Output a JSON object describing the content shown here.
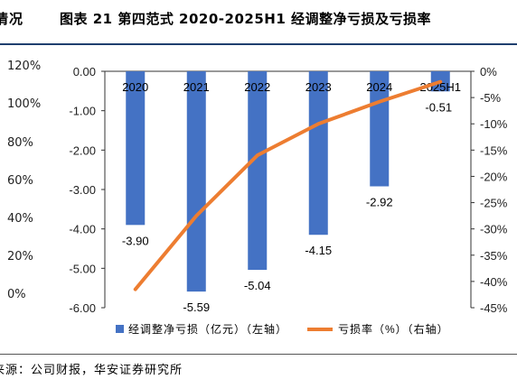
{
  "header": {
    "title_fragment": "情况",
    "title": "图表  21  第四范式 2020-2025H1 经调整净亏损及亏损率"
  },
  "side_axis_ticks": [
    "120%",
    "100%",
    "80%",
    "60%",
    "40%",
    "20%",
    "0%"
  ],
  "chart_data": {
    "type": "bar+line",
    "categories": [
      "2020",
      "2021",
      "2022",
      "2023",
      "2024",
      "2025H1"
    ],
    "series": [
      {
        "name": "经调整净亏损（亿元）（左轴）",
        "type": "bar",
        "axis": "left",
        "color": "#4472C4",
        "values": [
          -3.9,
          -5.59,
          -5.04,
          -4.15,
          -2.92,
          -0.51
        ],
        "labels": [
          "-3.90",
          "-5.59",
          "-5.04",
          "-4.15",
          "-2.92",
          "-0.51"
        ]
      },
      {
        "name": "亏损率（%）（右轴）",
        "type": "line",
        "axis": "right",
        "color": "#ED7D31",
        "values": [
          -41.5,
          -27.5,
          -16.0,
          -10.0,
          -5.8,
          -2.0
        ]
      }
    ],
    "left_axis": {
      "ylim": [
        -6.0,
        0.0
      ],
      "ticks": [
        "0.00",
        "-1.00",
        "-2.00",
        "-3.00",
        "-4.00",
        "-5.00",
        "-6.00"
      ]
    },
    "right_axis": {
      "ylim": [
        -45,
        0
      ],
      "ticks": [
        "0%",
        "-5%",
        "-10%",
        "-15%",
        "-20%",
        "-25%",
        "-30%",
        "-35%",
        "-40%",
        "-45%"
      ]
    },
    "grid": false,
    "legend_position": "bottom"
  },
  "footer": {
    "source": "来源：公司财报，华安证券研究所"
  }
}
